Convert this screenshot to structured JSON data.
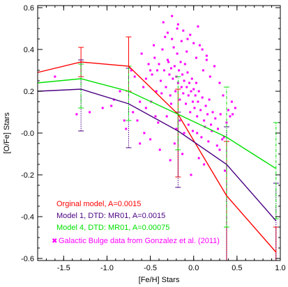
{
  "chart_data": {
    "type": "line",
    "title": "",
    "xlabel": "[Fe/H] Stars",
    "ylabel": "[O/Fe] Stars",
    "xlim": [
      -1.8,
      1.0
    ],
    "ylim": [
      -0.61,
      0.61
    ],
    "x_ticks": [
      -1.5,
      -1.0,
      -0.5,
      0.0,
      0.5,
      1.0
    ],
    "x_tick_labels": [
      "-1.5",
      "-1.0",
      "-0.5",
      "0.0",
      "0.5",
      "1.0"
    ],
    "y_ticks": [
      -0.6,
      -0.4,
      -0.2,
      0.0,
      0.2,
      0.4,
      0.6
    ],
    "y_tick_labels": [
      "-0.6",
      "-0.4",
      "-0.2",
      "-0.0",
      "0.2",
      "0.4",
      "0.6"
    ],
    "grid": false,
    "legend_position": "bottom-left",
    "series": [
      {
        "name": "Orginal model, A=0.0015",
        "color": "#ff0000",
        "x": [
          -1.8,
          -1.3,
          -0.75,
          -0.18,
          0.38,
          0.95
        ],
        "y": [
          0.29,
          0.34,
          0.32,
          0.09,
          -0.3,
          -0.57
        ],
        "err_x": [
          -1.3,
          -0.75,
          -0.18,
          0.38,
          0.95
        ],
        "err_low": [
          0.27,
          0.2,
          -0.21,
          -0.61,
          -0.61
        ],
        "err_high": [
          0.41,
          0.46,
          0.21,
          -0.04,
          -0.45
        ]
      },
      {
        "name": "Model 1, DTD: MR01, A=0.0015",
        "color": "#4b0082",
        "x": [
          -1.8,
          -1.3,
          -0.75,
          -0.18,
          0.38,
          0.95
        ],
        "y": [
          0.2,
          0.21,
          0.14,
          0.01,
          -0.15,
          -0.42
        ],
        "err_x": [
          -1.3,
          -0.75,
          -0.18,
          0.38,
          0.95
        ],
        "err_low": [
          0.01,
          -0.07,
          -0.26,
          -0.61,
          -0.61
        ],
        "err_high": [
          0.35,
          0.31,
          0.1,
          0.03,
          -0.24
        ]
      },
      {
        "name": "Model 4, DTD: MR01, A=0.00075",
        "color": "#00e000",
        "x": [
          -1.8,
          -1.3,
          -0.75,
          -0.18,
          0.38,
          0.95
        ],
        "y": [
          0.24,
          0.26,
          0.2,
          0.09,
          -0.02,
          -0.17
        ],
        "err_x": [
          -1.3,
          -0.75,
          -0.18,
          0.38,
          0.95
        ],
        "err_low": [
          0.12,
          0.06,
          -0.08,
          -0.45,
          -0.41
        ],
        "err_high": [
          0.33,
          0.32,
          0.27,
          0.22,
          0.05
        ]
      }
    ],
    "scatter": {
      "name": "Galactic Bulge data from Gonzalez et al. (2011)",
      "color": "#ff00ff",
      "x": [
        -1.2,
        -1.05,
        -0.92,
        -0.85,
        -0.78,
        -0.72,
        -0.68,
        -0.62,
        -0.58,
        -0.55,
        -0.52,
        -0.5,
        -0.48,
        -0.45,
        -0.43,
        -0.4,
        -0.38,
        -0.36,
        -0.34,
        -0.32,
        -0.3,
        -0.28,
        -0.27,
        -0.26,
        -0.25,
        -0.24,
        -0.22,
        -0.21,
        -0.2,
        -0.19,
        -0.18,
        -0.17,
        -0.16,
        -0.15,
        -0.14,
        -0.13,
        -0.12,
        -0.11,
        -0.1,
        -0.09,
        -0.08,
        -0.07,
        -0.06,
        -0.05,
        -0.04,
        -0.03,
        -0.02,
        -0.01,
        0.0,
        0.01,
        0.02,
        0.03,
        0.04,
        0.05,
        0.06,
        0.08,
        0.1,
        0.12,
        0.14,
        0.16,
        0.18,
        0.2,
        0.22,
        0.25,
        0.28,
        0.31,
        0.35,
        0.38,
        0.42,
        0.45,
        -0.6,
        -0.55,
        -0.46,
        -0.42,
        -0.33,
        -0.29,
        -0.23,
        -0.19,
        -0.14,
        -0.08,
        -0.04,
        0.03,
        0.07,
        0.11,
        0.15,
        0.19,
        0.24,
        0.3,
        0.34,
        0.4,
        -0.7,
        -0.65,
        -0.57,
        -0.49,
        -0.41,
        -0.37,
        -0.31,
        -0.26,
        -0.2,
        -0.16,
        -0.11,
        -0.06,
        -0.01,
        0.04,
        0.09,
        0.13,
        0.17,
        0.21,
        0.27,
        0.33,
        -0.35,
        -0.3,
        -0.25,
        -0.18,
        -0.12,
        -0.07,
        0.0,
        0.05,
        0.1,
        0.15,
        -0.5,
        -0.44,
        -0.39,
        -0.27,
        -0.22,
        -0.13,
        -0.03,
        0.06,
        0.12,
        0.36,
        -1.35,
        -1.6,
        -0.95,
        -0.8,
        -0.62,
        0.44,
        0.48,
        0.3
      ],
      "y": [
        0.1,
        0.12,
        0.16,
        0.2,
        0.02,
        0.3,
        0.27,
        0.15,
        0.22,
        0.12,
        0.33,
        0.3,
        0.28,
        0.36,
        0.2,
        0.33,
        0.25,
        0.4,
        0.3,
        0.22,
        0.35,
        0.28,
        0.18,
        0.31,
        0.45,
        0.26,
        0.32,
        0.2,
        0.27,
        0.38,
        0.24,
        0.3,
        0.16,
        0.34,
        0.22,
        0.28,
        0.19,
        0.25,
        0.33,
        0.14,
        0.22,
        0.29,
        0.18,
        0.24,
        0.1,
        0.2,
        0.26,
        0.15,
        0.21,
        0.12,
        0.18,
        0.24,
        0.08,
        0.15,
        0.2,
        0.11,
        0.17,
        0.06,
        0.13,
        0.09,
        0.16,
        0.04,
        0.1,
        0.07,
        0.02,
        0.09,
        -0.02,
        0.05,
        0.08,
        0.09,
        0.38,
        0.26,
        0.42,
        0.3,
        0.46,
        0.34,
        0.41,
        0.5,
        0.44,
        0.39,
        0.47,
        0.36,
        0.42,
        0.3,
        0.35,
        0.27,
        0.32,
        0.24,
        0.18,
        0.11,
        0.1,
        0.06,
        0.0,
        0.15,
        0.05,
        0.19,
        0.08,
        0.14,
        0.02,
        0.06,
        0.0,
        0.04,
        0.01,
        0.0,
        -0.02,
        0.03,
        -0.04,
        0.01,
        -0.06,
        -0.03,
        0.53,
        0.48,
        0.56,
        0.52,
        0.49,
        0.45,
        0.43,
        0.51,
        0.4,
        0.37,
        -0.03,
        0.08,
        -0.08,
        -0.13,
        -0.05,
        -0.1,
        -0.2,
        -0.12,
        -0.15,
        -0.18,
        0.09,
        0.27,
        0.13,
        0.06,
        -0.05,
        0.15,
        0.12,
        -0.08
      ]
    },
    "legend": [
      {
        "label": "Orginal model, A=0.0015",
        "color": "#ff0000"
      },
      {
        "label": "Model 1, DTD: MR01, A=0.0015",
        "color": "#4b0082"
      },
      {
        "label": "Model 4, DTD: MR01, A=0.00075",
        "color": "#00e000"
      },
      {
        "label": "Galactic Bulge data from Gonzalez et al. (2011)",
        "color": "#ff00ff"
      }
    ]
  }
}
